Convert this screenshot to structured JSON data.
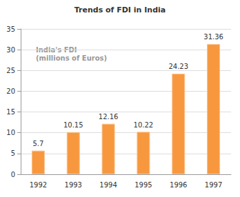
{
  "chart_data": {
    "type": "bar",
    "title": "Trends of FDI in India",
    "annotations": [
      "India's FDI",
      "(millions of Euros)"
    ],
    "categories": [
      "1992",
      "1993",
      "1994",
      "1995",
      "1996",
      "1997"
    ],
    "values": [
      5.7,
      10.15,
      12.16,
      10.22,
      24.23,
      31.36
    ],
    "color": "#f7983f",
    "ylim": [
      0,
      35
    ],
    "yticks": [
      0,
      5,
      10,
      15,
      20,
      25,
      30,
      35
    ],
    "grid": true,
    "data_labels": true
  }
}
